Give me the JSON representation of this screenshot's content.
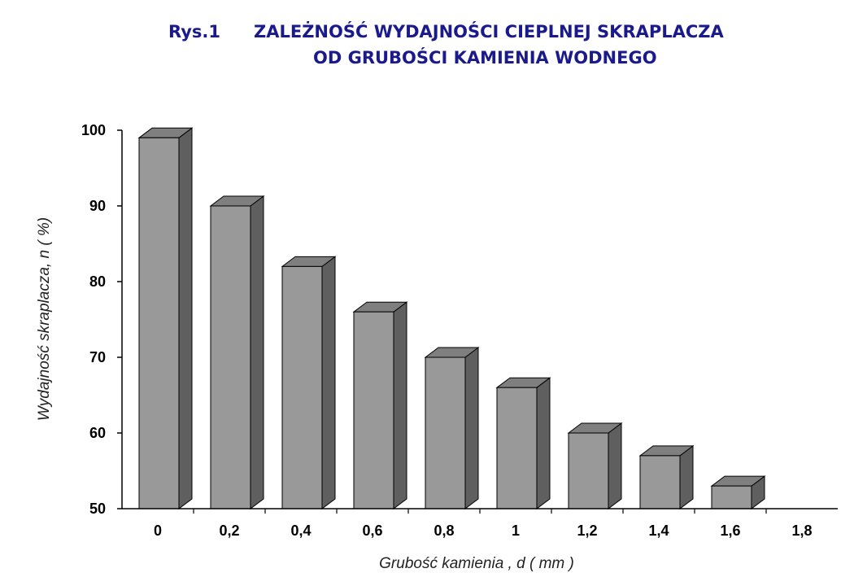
{
  "chart_data": {
    "type": "bar",
    "title_prefix": "Rys.1",
    "title_line1": "ZALEŻNOŚĆ WYDAJNOŚCI  CIEPLNEJ SKRAPLACZA",
    "title_line2": "OD GRUBOŚCI KAMIENIA WODNEGO",
    "xlabel": "Grubość kamienia , d ( mm )",
    "ylabel": "Wydajność skraplacza, n ( %)",
    "categories": [
      "0",
      "0,2",
      "0,4",
      "0,6",
      "0,8",
      "1",
      "1,2",
      "1,4",
      "1,6",
      "1,8"
    ],
    "values": [
      99,
      90,
      82,
      76,
      70,
      66,
      60,
      57,
      53,
      null
    ],
    "ylim": [
      50,
      100
    ],
    "yticks": [
      "50",
      "60",
      "70",
      "80",
      "90",
      "100"
    ],
    "grid": false,
    "bar_colors": {
      "front": "#999999",
      "top": "#7f7f7f",
      "side": "#5f5f5f"
    },
    "title_color": "#1a1a8c"
  }
}
